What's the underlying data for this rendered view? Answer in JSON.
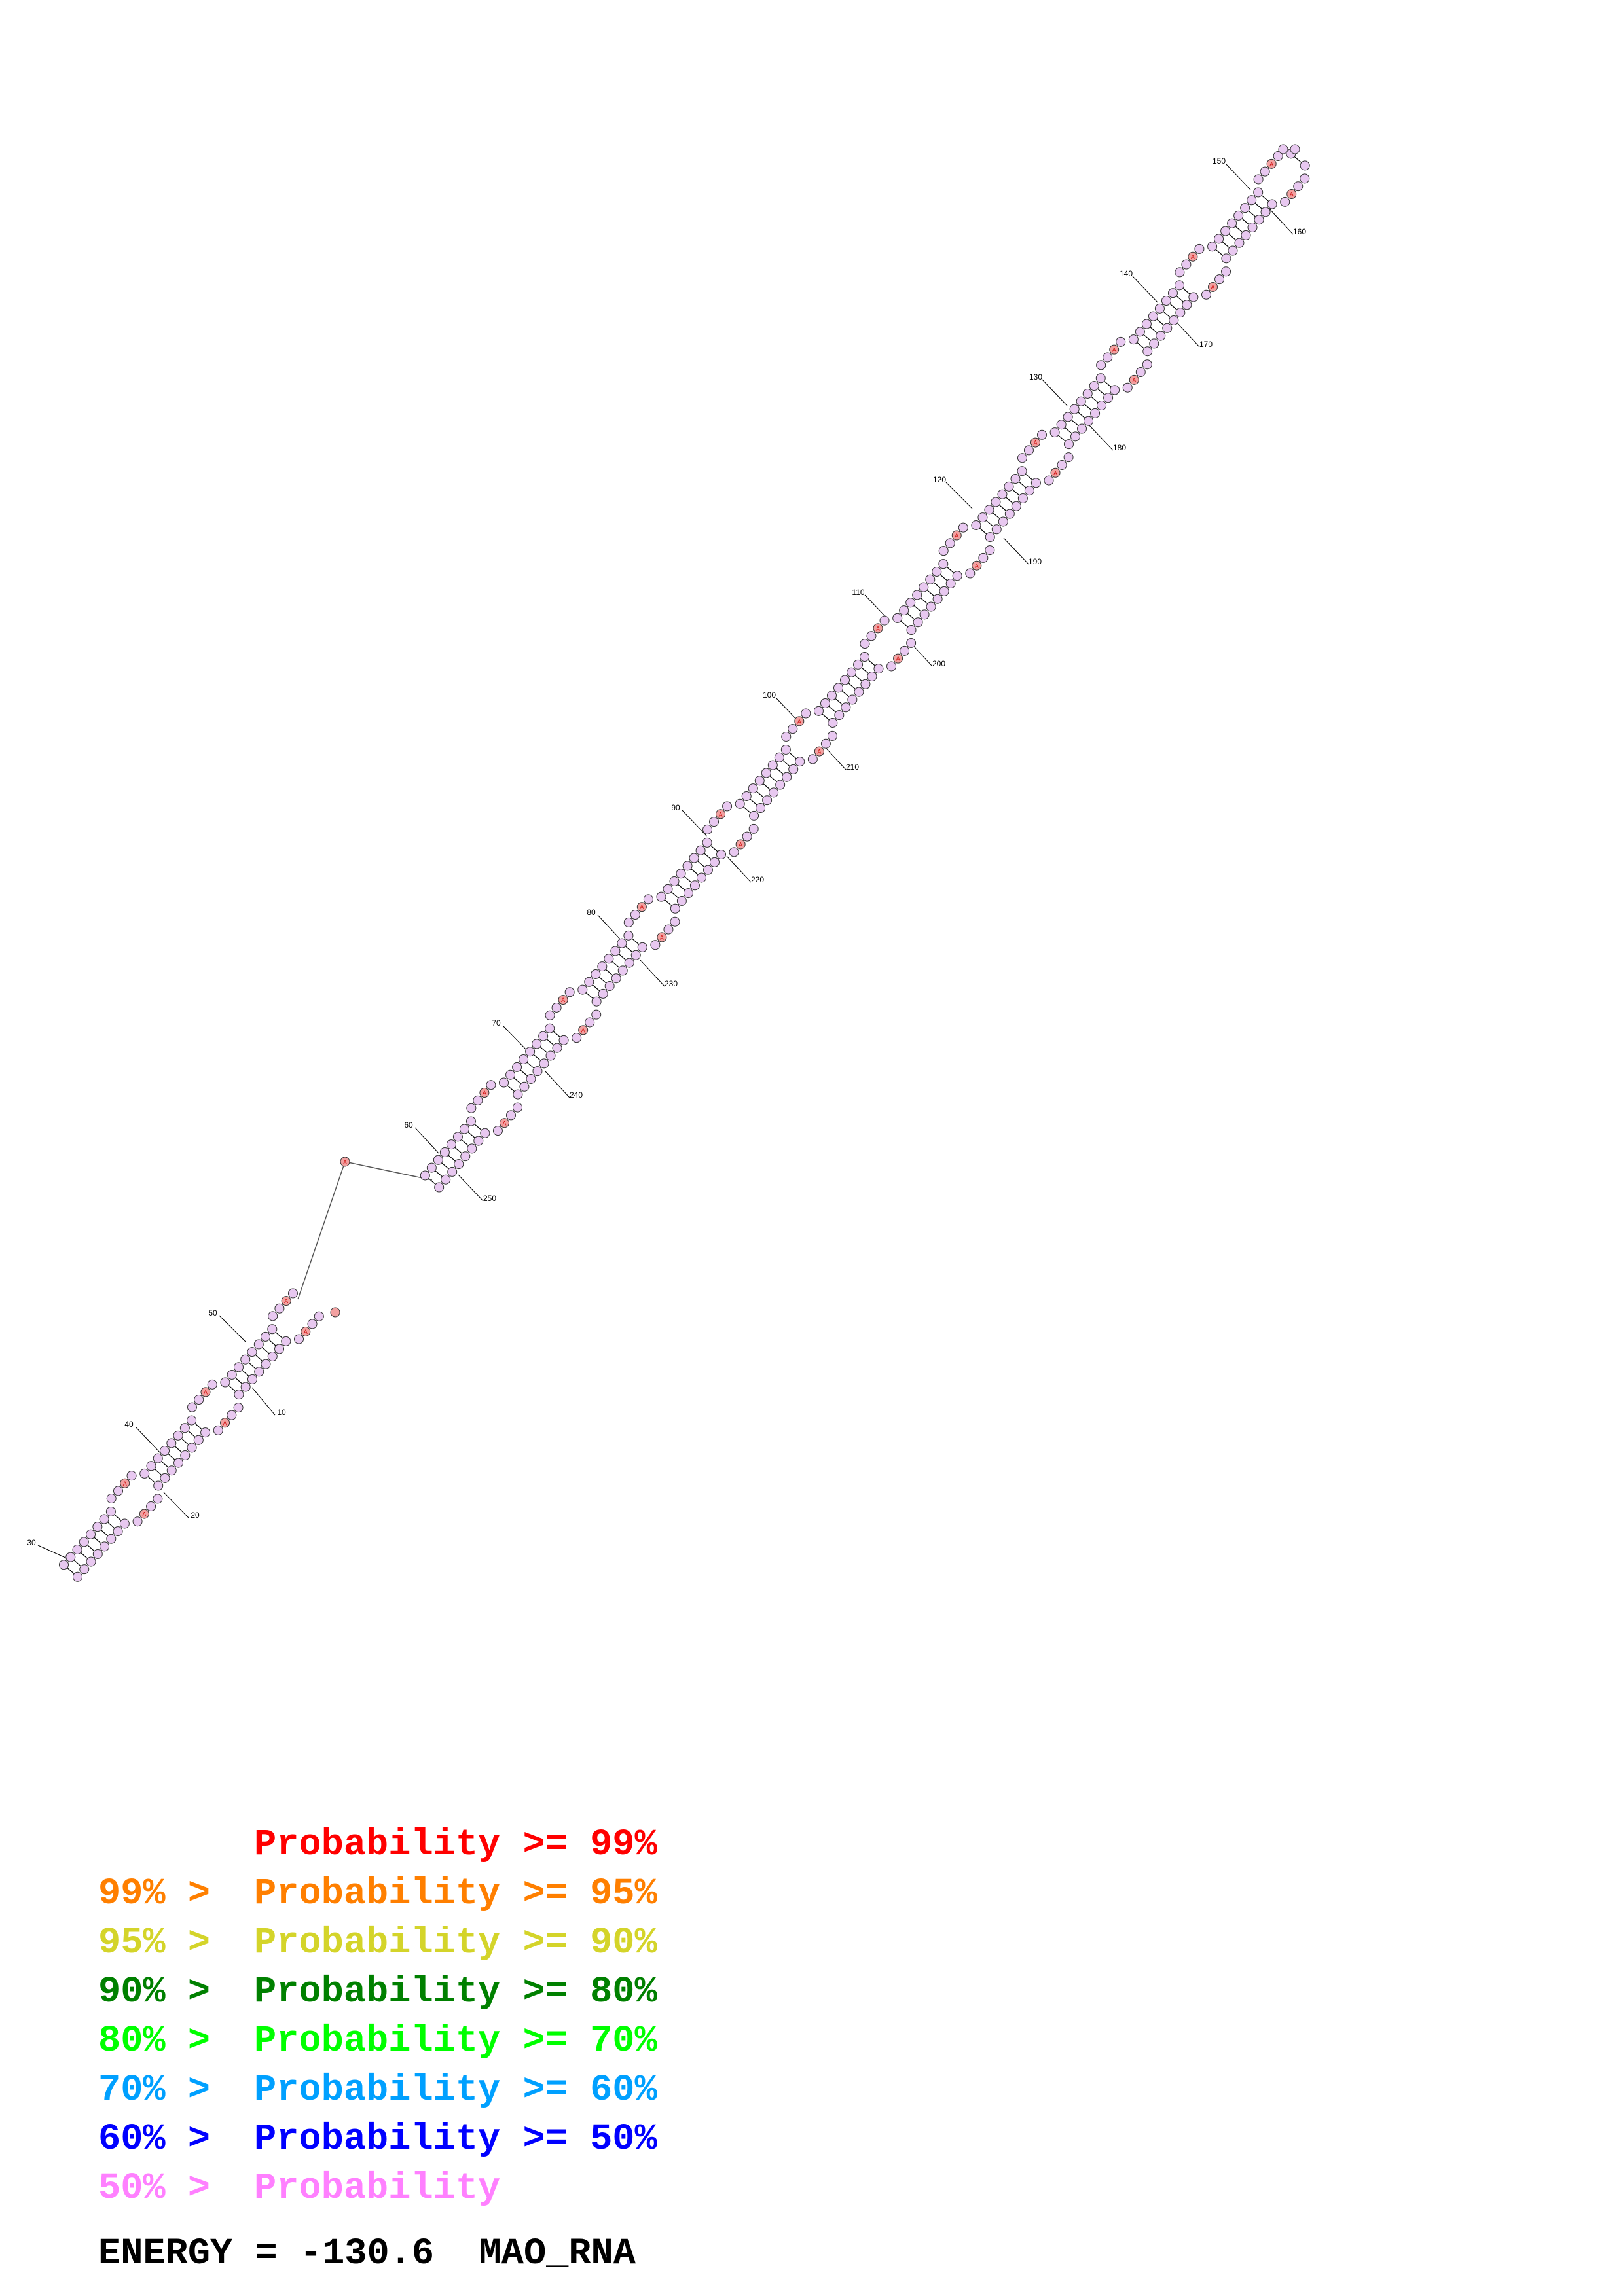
{
  "diagram": {
    "position_labels": [
      "10",
      "20",
      "30",
      "40",
      "50",
      "60",
      "70",
      "80",
      "90",
      "100",
      "110",
      "120",
      "130",
      "140",
      "150",
      "160",
      "170",
      "180",
      "190",
      "200",
      "210",
      "220",
      "230",
      "240",
      "250"
    ],
    "base_letter": "A",
    "colors": {
      "nucleotide_fill": "#e8c8f0",
      "highlight_fill": "#f2a0a0",
      "highlight_letter": "#d01010",
      "stroke": "#333333"
    }
  },
  "legend": {
    "rows": [
      {
        "prefix": "",
        "label": "Probability",
        "suffix": ">= 99%",
        "color": "#ff0000"
      },
      {
        "prefix": "99% >",
        "label": "Probability",
        "suffix": ">= 95%",
        "color": "#ff7f00"
      },
      {
        "prefix": "95% >",
        "label": "Probability",
        "suffix": ">= 90%",
        "color": "#d4d42a"
      },
      {
        "prefix": "90% >",
        "label": "Probability",
        "suffix": ">= 80%",
        "color": "#008000"
      },
      {
        "prefix": "80% >",
        "label": "Probability",
        "suffix": ">= 70%",
        "color": "#00ff00"
      },
      {
        "prefix": "70% >",
        "label": "Probability",
        "suffix": ">= 60%",
        "color": "#00a0ff"
      },
      {
        "prefix": "60% >",
        "label": "Probability",
        "suffix": ">= 50%",
        "color": "#0000ff"
      },
      {
        "prefix": "50% >",
        "label": "Probability",
        "suffix": "",
        "color": "#ff80ff"
      }
    ],
    "energy_label": "ENERGY =",
    "energy_value": "-130.6",
    "sequence_name": "MAO_RNA"
  }
}
